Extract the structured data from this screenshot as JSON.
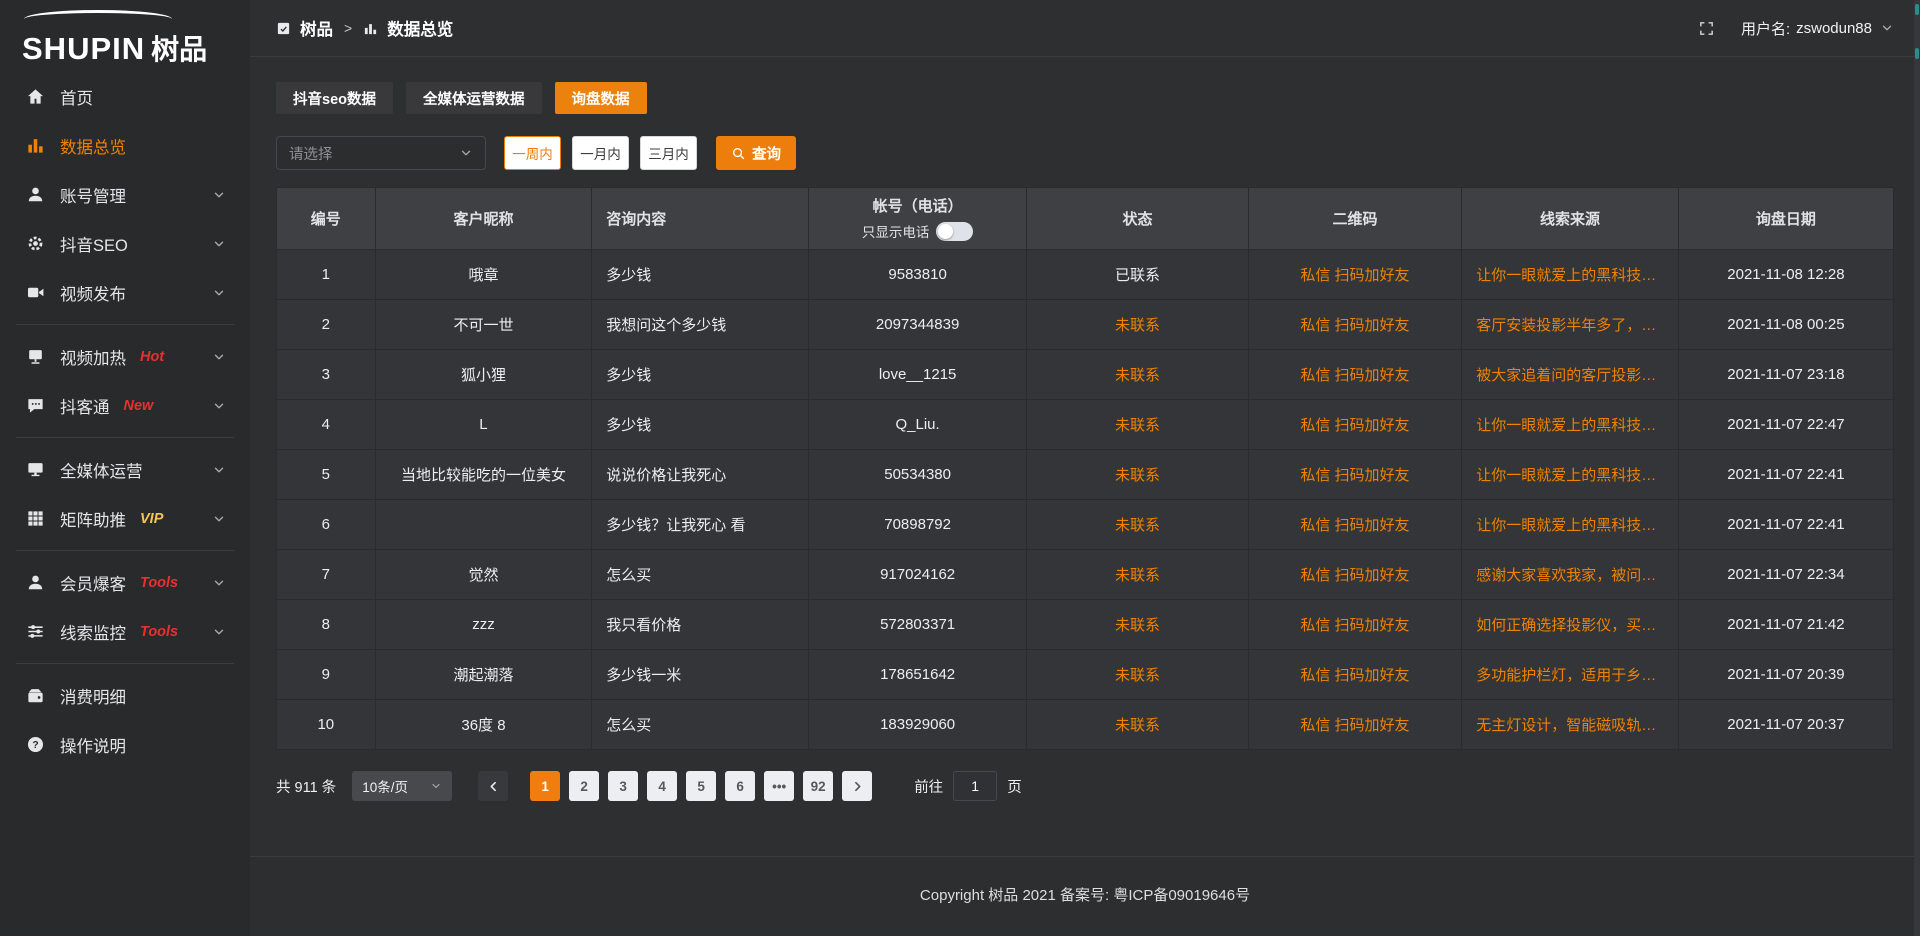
{
  "colors": {
    "accent": "#ee7e0b",
    "orange_text": "#f08200",
    "hot_badge": "#e8312f",
    "vip_badge": "#f5c451"
  },
  "sidebar": {
    "logo": {
      "brand_en": "SHUPIN",
      "brand_cn": "树品"
    },
    "items": [
      {
        "key": "home",
        "label": "首页",
        "icon": "home-icon",
        "active": false,
        "chevron": false,
        "badge": "",
        "badge_color": "",
        "divider_after": false
      },
      {
        "key": "data-overview",
        "label": "数据总览",
        "icon": "bar-chart-icon",
        "active": true,
        "chevron": false,
        "badge": "",
        "badge_color": "",
        "divider_after": false
      },
      {
        "key": "account-management",
        "label": "账号管理",
        "icon": "user-icon",
        "active": false,
        "chevron": true,
        "badge": "",
        "badge_color": "",
        "divider_after": false
      },
      {
        "key": "douyin-seo",
        "label": "抖音SEO",
        "icon": "gear-icon",
        "active": false,
        "chevron": true,
        "badge": "",
        "badge_color": "",
        "divider_after": false
      },
      {
        "key": "video-publish",
        "label": "视频发布",
        "icon": "video-icon",
        "active": false,
        "chevron": true,
        "badge": "",
        "badge_color": "",
        "divider_after": true
      },
      {
        "key": "video-heating",
        "label": "视频加热",
        "icon": "screen-icon",
        "active": false,
        "chevron": true,
        "badge": "Hot",
        "badge_color": "#e8312f",
        "divider_after": false
      },
      {
        "key": "doukertong",
        "label": "抖客通",
        "icon": "chat-icon",
        "active": false,
        "chevron": true,
        "badge": "New",
        "badge_color": "#e8312f",
        "divider_after": true
      },
      {
        "key": "omni-media",
        "label": "全媒体运营",
        "icon": "monitor-icon",
        "active": false,
        "chevron": true,
        "badge": "",
        "badge_color": "",
        "divider_after": false
      },
      {
        "key": "matrix-boost",
        "label": "矩阵助推",
        "icon": "grid-icon",
        "active": false,
        "chevron": true,
        "badge": "VIP",
        "badge_color": "#f5c451",
        "divider_after": true
      },
      {
        "key": "member-baoke",
        "label": "会员爆客",
        "icon": "person-icon",
        "active": false,
        "chevron": true,
        "badge": "Tools",
        "badge_color": "#e8312f",
        "divider_after": false
      },
      {
        "key": "lead-monitor",
        "label": "线索监控",
        "icon": "sliders-icon",
        "active": false,
        "chevron": true,
        "badge": "Tools",
        "badge_color": "#e8312f",
        "divider_after": true
      },
      {
        "key": "consumption-detail",
        "label": "消费明细",
        "icon": "wallet-icon",
        "active": false,
        "chevron": false,
        "badge": "",
        "badge_color": "",
        "divider_after": false
      },
      {
        "key": "operation-guide",
        "label": "操作说明",
        "icon": "question-icon",
        "active": false,
        "chevron": false,
        "badge": "",
        "badge_color": "",
        "divider_after": false
      }
    ]
  },
  "header": {
    "breadcrumb_root": "树品",
    "breadcrumb_sep": ">",
    "breadcrumb_current": "数据总览",
    "username_label": "用户名:",
    "username": "zswodun88"
  },
  "tabs": [
    {
      "label": "抖音seo数据",
      "active": false
    },
    {
      "label": "全媒体运营数据",
      "active": false
    },
    {
      "label": "询盘数据",
      "active": true
    }
  ],
  "filters": {
    "select_placeholder": "请选择",
    "periods": [
      {
        "label": "一周内",
        "active": true
      },
      {
        "label": "一月内",
        "active": false
      },
      {
        "label": "三月内",
        "active": false
      }
    ],
    "search_label": "查询"
  },
  "table": {
    "columns": [
      "编号",
      "客户昵称",
      "咨询内容",
      "帐号（电话）",
      "状态",
      "二维码",
      "线索来源",
      "询盘日期"
    ],
    "phone_toggle_label": "只显示电话",
    "rows": [
      {
        "id": "1",
        "nickname": "哦章",
        "content": "多少钱",
        "account": "9583810",
        "status": "已联系",
        "contacted": true,
        "qr": "私信 扫码加好友",
        "source": "让你一眼就爱上的黑科技，能...",
        "date": "2021-11-08 12:28"
      },
      {
        "id": "2",
        "nickname": "不可一世",
        "content": "我想问这个多少钱",
        "account": "2097344839",
        "status": "未联系",
        "contacted": false,
        "qr": "私信 扫码加好友",
        "source": "客厅安装投影半年多了，真实...",
        "date": "2021-11-08 00:25"
      },
      {
        "id": "3",
        "nickname": "狐小狸",
        "content": "多少钱",
        "account": "love__1215",
        "status": "未联系",
        "contacted": false,
        "qr": "私信 扫码加好友",
        "source": "被大家追着问的客厅投影分享...",
        "date": "2021-11-07 23:18"
      },
      {
        "id": "4",
        "nickname": "L",
        "content": "多少钱",
        "account": "Q_Liu.",
        "status": "未联系",
        "contacted": false,
        "qr": "私信 扫码加好友",
        "source": "让你一眼就爱上的黑科技，能...",
        "date": "2021-11-07 22:47"
      },
      {
        "id": "5",
        "nickname": "当地比较能吃的一位美女",
        "content": "说说价格让我死心",
        "account": "50534380",
        "status": "未联系",
        "contacted": false,
        "qr": "私信 扫码加好友",
        "source": "让你一眼就爱上的黑科技，能...",
        "date": "2021-11-07 22:41"
      },
      {
        "id": "6",
        "nickname": "",
        "content": "多少钱？让我死心 看",
        "account": "70898792",
        "status": "未联系",
        "contacted": false,
        "qr": "私信 扫码加好友",
        "source": "让你一眼就爱上的黑科技，能...",
        "date": "2021-11-07 22:41"
      },
      {
        "id": "7",
        "nickname": "觉然",
        "content": "怎么买",
        "account": "917024162",
        "status": "未联系",
        "contacted": false,
        "qr": "私信 扫码加好友",
        "source": "感谢大家喜欢我家，被问了好...",
        "date": "2021-11-07 22:34"
      },
      {
        "id": "8",
        "nickname": "zzz",
        "content": "我只看价格",
        "account": "572803371",
        "status": "未联系",
        "contacted": false,
        "qr": "私信 扫码加好友",
        "source": "如何正确选择投影仪，买投影...",
        "date": "2021-11-07 21:42"
      },
      {
        "id": "9",
        "nickname": "潮起潮落",
        "content": "多少钱一米",
        "account": "178651642",
        "status": "未联系",
        "contacted": false,
        "qr": "私信 扫码加好友",
        "source": "多功能护栏灯，适用于乡村文...",
        "date": "2021-11-07 20:39"
      },
      {
        "id": "10",
        "nickname": "36度 8",
        "content": "怎么买",
        "account": "183929060",
        "status": "未联系",
        "contacted": false,
        "qr": "私信 扫码加好友",
        "source": "无主灯设计，智能磁吸轨道灯...",
        "date": "2021-11-07 20:37"
      }
    ]
  },
  "pagination": {
    "total_label": "共 911 条",
    "page_size": "10条/页",
    "pages": [
      "1",
      "2",
      "3",
      "4",
      "5",
      "6",
      "•••",
      "92"
    ],
    "active_page": "1",
    "goto_label": "前往",
    "goto_value": "1",
    "goto_suffix": "页"
  },
  "footer": {
    "copyright": "Copyright 树品 2021 备案号: 粤ICP备09019646号"
  }
}
